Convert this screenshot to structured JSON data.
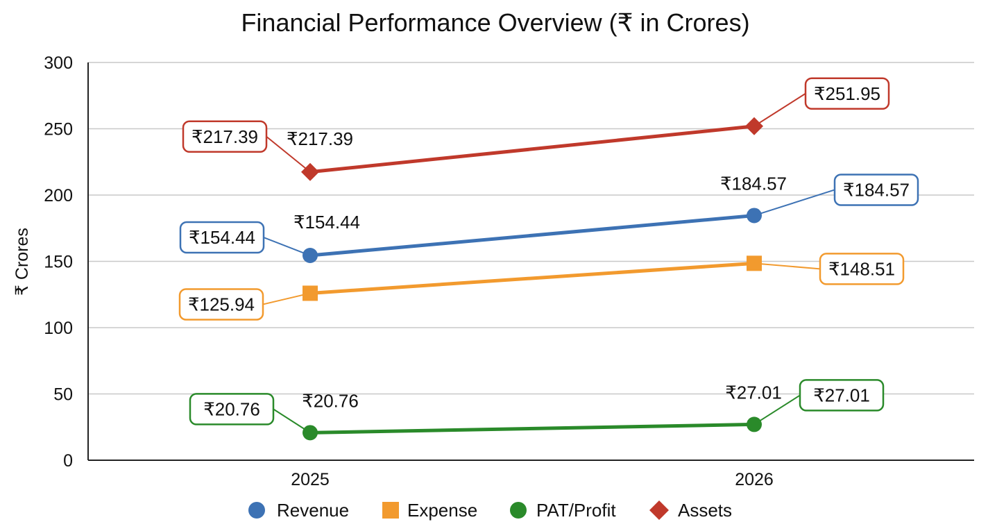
{
  "chart_data": {
    "type": "line",
    "title": "Financial Performance Overview (₹ in Crores)",
    "xlabel": "",
    "ylabel": "₹ Crores",
    "categories": [
      "2025",
      "2026"
    ],
    "ylim": [
      0,
      300
    ],
    "yticks": [
      0,
      50,
      100,
      150,
      200,
      250,
      300
    ],
    "grid": true,
    "legend_position": "bottom",
    "series": [
      {
        "name": "Revenue",
        "values": [
          154.44,
          184.57
        ],
        "labels": [
          "₹154.44",
          "₹184.57"
        ],
        "color": "#3d72b4",
        "marker": "circle"
      },
      {
        "name": "Expense",
        "values": [
          125.94,
          148.51
        ],
        "labels": [
          "₹125.94",
          "₹148.51"
        ],
        "color": "#f29a2e",
        "marker": "square"
      },
      {
        "name": "PAT/Profit",
        "values": [
          20.76,
          27.01
        ],
        "labels": [
          "₹20.76",
          "₹27.01"
        ],
        "color": "#2a8a2a",
        "marker": "circle"
      },
      {
        "name": "Assets",
        "values": [
          217.39,
          251.95
        ],
        "labels": [
          "₹217.39",
          "₹251.95"
        ],
        "color": "#c0392b",
        "marker": "diamond"
      }
    ]
  }
}
